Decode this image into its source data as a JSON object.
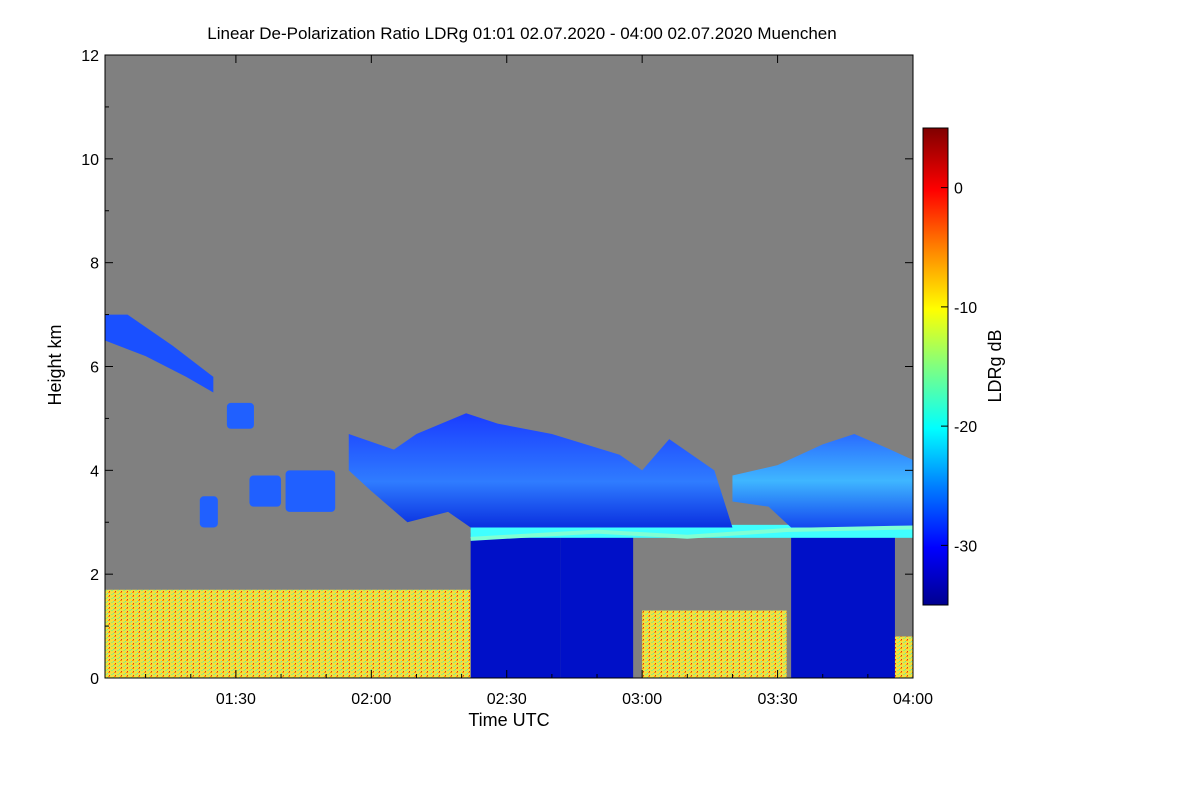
{
  "chart_data": {
    "type": "heatmap",
    "title": "Linear De-Polarization Ratio LDRg   01:01 02.07.2020 - 04:00 02.07.2020 Muenchen",
    "xlabel": "Time UTC",
    "ylabel": "Height km",
    "x_ticks": [
      "01:30",
      "02:00",
      "02:30",
      "03:00",
      "03:30",
      "04:00"
    ],
    "x_tick_minutes": [
      90,
      120,
      150,
      180,
      210,
      240
    ],
    "xlim_minutes": [
      61,
      240
    ],
    "y_ticks": [
      "0",
      "2",
      "4",
      "6",
      "8",
      "10",
      "12"
    ],
    "y_tick_values": [
      0,
      2,
      4,
      6,
      8,
      10,
      12
    ],
    "ylim": [
      0,
      12
    ],
    "colorbar": {
      "label": "LDRg dB",
      "ticks": [
        "0",
        "-10",
        "-20",
        "-30"
      ],
      "tick_values": [
        0,
        -10,
        -20,
        -30
      ],
      "range": [
        -35,
        5
      ],
      "colors": [
        "#00008f",
        "#0000ff",
        "#0080ff",
        "#00ffff",
        "#80ff80",
        "#ffff00",
        "#ff8000",
        "#ff0000",
        "#800000"
      ]
    },
    "background_color": "#808080",
    "features": [
      {
        "name": "boundary-layer-left",
        "t": [
          61,
          142
        ],
        "z": [
          0,
          1.7
        ],
        "ldr": -12
      },
      {
        "name": "boundary-layer-right",
        "t": [
          180,
          212
        ],
        "z": [
          0,
          1.3
        ],
        "ldr": -12
      },
      {
        "name": "boundary-layer-edge",
        "t": [
          234,
          240
        ],
        "z": [
          0,
          0.8
        ],
        "ldr": -12
      },
      {
        "name": "rain-column-1",
        "t": [
          142,
          162
        ],
        "z": [
          0,
          2.8
        ],
        "ldr": -33
      },
      {
        "name": "rain-column-2",
        "t": [
          162,
          178
        ],
        "z": [
          0,
          2.8
        ],
        "ldr": -32
      },
      {
        "name": "rain-column-3",
        "t": [
          213,
          236
        ],
        "z": [
          0,
          2.8
        ],
        "ldr": -33
      },
      {
        "name": "melting-layer",
        "t": [
          142,
          240
        ],
        "z": [
          2.7,
          2.95
        ],
        "ldr": -20
      },
      {
        "name": "ice-cloud-upper",
        "t": [
          61,
          85
        ],
        "z": [
          5.5,
          7.0
        ],
        "ldr": -28
      },
      {
        "name": "ice-cloud-mid",
        "t": [
          115,
          200
        ],
        "z": [
          2.9,
          5.0
        ],
        "ldr": -26
      },
      {
        "name": "ice-cloud-right",
        "t": [
          200,
          240
        ],
        "z": [
          2.9,
          4.7
        ],
        "ldr": -24
      }
    ]
  }
}
